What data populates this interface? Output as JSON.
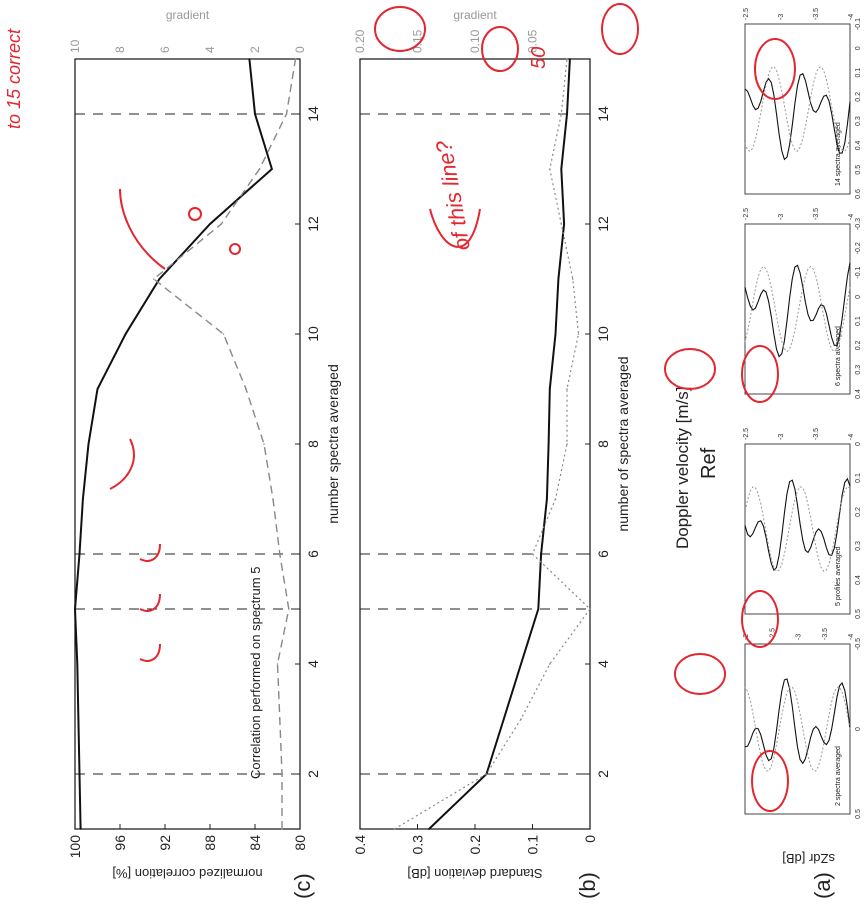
{
  "panels": {
    "a_label": "(a)",
    "b_label": "(b)",
    "c_label": "(c)"
  },
  "panel_a": {
    "ylabel": "sZdr [dB]",
    "subplots": [
      {
        "legend": "2 spectra averaged",
        "yticks": [
          "0.5",
          "0",
          "-0.5"
        ],
        "xticks": [
          "-4",
          "-3.5",
          "-3",
          "-2.5",
          "-2"
        ]
      },
      {
        "legend": "5 profiles averaged",
        "yticks": [
          "0.5",
          "0.4",
          "0.3",
          "0.2",
          "0.1",
          "0"
        ],
        "xticks": [
          "-4",
          "-3.5",
          "-3",
          "-2.5"
        ]
      },
      {
        "legend": "6 spectra averaged",
        "yticks": [
          "0.4",
          "0.3",
          "0.2",
          "0.1",
          "0",
          "-0.1",
          "-0.2",
          "-0.3"
        ],
        "xticks": [
          "-4",
          "-3.5",
          "-3",
          "-2.5"
        ]
      },
      {
        "legend": "14 spectra averaged",
        "yticks": [
          "0.6",
          "0.5",
          "0.4",
          "0.3",
          "0.2",
          "0.1",
          "0",
          "-0.1"
        ],
        "xticks": [
          "-4",
          "-3.5",
          "-3",
          "-2.5"
        ]
      }
    ],
    "ref_label": "Ref",
    "xlabel": "Doppler velocity [m/s]"
  },
  "chart_data": [
    {
      "type": "line",
      "panel": "(b)",
      "xlabel": "number of spectra averaged",
      "ylabel": "Standard deviation [dB]",
      "ylabel_right": "gradient",
      "xlim": [
        1,
        15
      ],
      "ylim": [
        0,
        0.4
      ],
      "ylim_right": [
        0,
        0.2
      ],
      "xticks": [
        "2",
        "4",
        "6",
        "8",
        "10",
        "12",
        "14"
      ],
      "yticks": [
        "0",
        "0.1",
        "0.2",
        "0.3",
        "0.4"
      ],
      "yticks_right": [
        "0.05",
        "0.10",
        "0.15",
        "0.20"
      ],
      "series": [
        {
          "style": "solid",
          "x": [
            1,
            2,
            3,
            4,
            5,
            6,
            7,
            8,
            9,
            10,
            11,
            12,
            13,
            14,
            15
          ],
          "y": [
            0.28,
            0.18,
            0.15,
            0.12,
            0.09,
            0.085,
            0.075,
            0.072,
            0.07,
            0.06,
            0.055,
            0.045,
            0.05,
            0.04,
            0.035
          ]
        },
        {
          "style": "dotted",
          "x": [
            1,
            2,
            3,
            4,
            5,
            6,
            7,
            8,
            9,
            10,
            11,
            12,
            13,
            14,
            15
          ],
          "y": [
            0.17,
            0.09,
            0.06,
            0.035,
            0.0,
            0.05,
            0.03,
            0.02,
            0.02,
            0.01,
            0.015,
            0.025,
            0.035,
            0.025,
            0.02
          ]
        }
      ],
      "vlines": [
        2,
        5,
        6,
        14
      ]
    },
    {
      "type": "line",
      "panel": "(c)",
      "title": "Correlation performed on spectrum  5",
      "xlabel": "number spectra averaged",
      "ylabel": "normalized correlation [%]",
      "ylabel_right": "gradient",
      "xlim": [
        1,
        15
      ],
      "ylim": [
        80,
        100
      ],
      "ylim_right": [
        0,
        10
      ],
      "xticks": [
        "2",
        "4",
        "6",
        "8",
        "10",
        "12",
        "14"
      ],
      "yticks": [
        "80",
        "84",
        "88",
        "92",
        "96",
        "100"
      ],
      "yticks_right": [
        "0",
        "2",
        "4",
        "6",
        "8",
        "10"
      ],
      "series": [
        {
          "style": "solid",
          "x": [
            1,
            2,
            3,
            4,
            5,
            6,
            7,
            8,
            9,
            10,
            11,
            12,
            13,
            14,
            15
          ],
          "y": [
            99.5,
            99.6,
            99.7,
            99.8,
            100,
            99.6,
            99.3,
            98.8,
            98,
            95.5,
            92.5,
            88,
            82.5,
            84,
            84.5
          ]
        },
        {
          "style": "dashed",
          "x": [
            1,
            2,
            3,
            4,
            5,
            6,
            7,
            8,
            9,
            10,
            11,
            12,
            13,
            14,
            15
          ],
          "y": [
            0.8,
            0.8,
            0.9,
            1.0,
            0.5,
            0.9,
            1.2,
            1.6,
            2.4,
            3.4,
            6.5,
            3.5,
            1.8,
            0.6,
            0.2
          ]
        }
      ],
      "vlines": [
        2,
        5,
        6,
        14
      ]
    }
  ],
  "annotations": {
    "note1": "of this line?",
    "note2": "to 15 correct",
    "note3": "50"
  }
}
